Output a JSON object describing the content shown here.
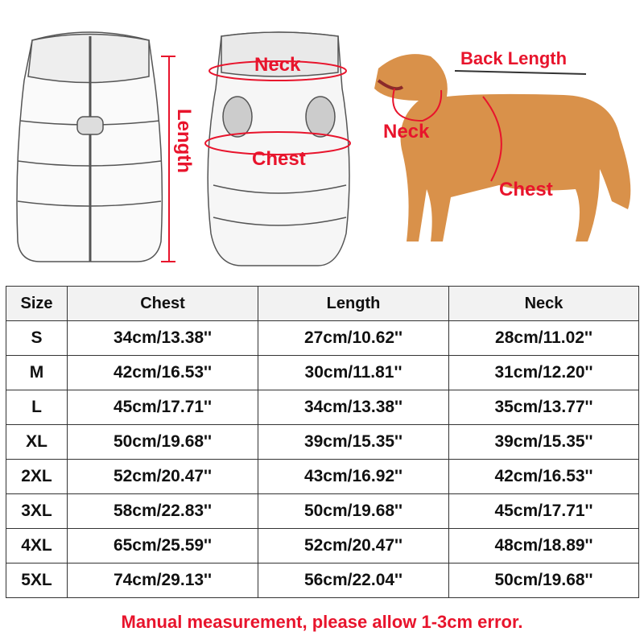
{
  "colors": {
    "accent": "#e8142c",
    "dog": "#d9914a",
    "text": "#111111",
    "header_bg": "#f2f2f2"
  },
  "labels": {
    "front_length": "Length",
    "back_neck": "Neck",
    "back_chest": "Chest",
    "dog_back_length": "Back Length",
    "dog_neck": "Neck",
    "dog_chest": "Chest"
  },
  "table": {
    "headers": [
      "Size",
      "Chest",
      "Length",
      "Neck"
    ],
    "rows": [
      [
        "S",
        "34cm/13.38''",
        "27cm/10.62''",
        "28cm/11.02''"
      ],
      [
        "M",
        "42cm/16.53''",
        "30cm/11.81''",
        "31cm/12.20''"
      ],
      [
        "L",
        "45cm/17.71''",
        "34cm/13.38''",
        "35cm/13.77''"
      ],
      [
        "XL",
        "50cm/19.68''",
        "39cm/15.35''",
        "39cm/15.35''"
      ],
      [
        "2XL",
        "52cm/20.47''",
        "43cm/16.92''",
        "42cm/16.53''"
      ],
      [
        "3XL",
        "58cm/22.83''",
        "50cm/19.68''",
        "45cm/17.71''"
      ],
      [
        "4XL",
        "65cm/25.59''",
        "52cm/20.47''",
        "48cm/18.89''"
      ],
      [
        "5XL",
        "74cm/29.13''",
        "56cm/22.04''",
        "50cm/19.68''"
      ]
    ]
  },
  "note": "Manual measurement, please allow 1-3cm error."
}
